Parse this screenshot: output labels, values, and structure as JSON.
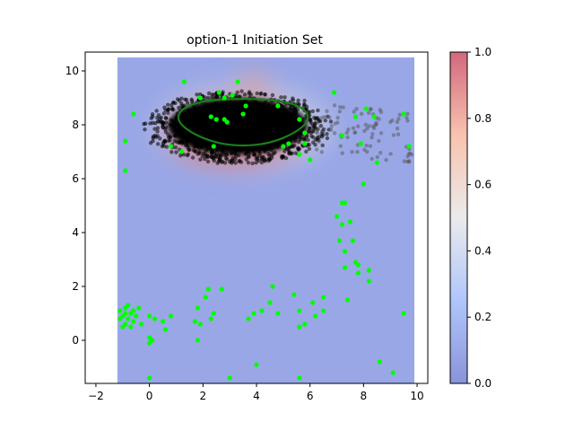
{
  "chart_data": {
    "type": "scatter",
    "title": "option-1 Initiation Set",
    "xlabel": "",
    "ylabel": "",
    "xlim": [
      -2.4,
      10.4
    ],
    "ylim": [
      -1.6,
      10.7
    ],
    "x_ticks": [
      -2,
      0,
      2,
      4,
      6,
      8,
      10
    ],
    "y_ticks": [
      0,
      2,
      4,
      6,
      8,
      10
    ],
    "background_field": {
      "x_range": [
        -1.2,
        9.9
      ],
      "y_range": [
        -1.6,
        10.5
      ],
      "base_value": 0.1,
      "high_region_center": [
        3.5,
        7.9
      ],
      "high_region_value": 0.8,
      "colormap": "coolwarm"
    },
    "colorbar": {
      "min": 0.0,
      "max": 1.0,
      "ticks": [
        "0.0",
        "0.2",
        "0.4",
        "0.6",
        "0.8",
        "1.0"
      ],
      "colormap": "coolwarm"
    },
    "black_cloud": {
      "color": "#000000",
      "center": [
        3.3,
        7.6
      ],
      "x_extent": [
        -1.2,
        7.6
      ],
      "y_extent": [
        6.2,
        9.6
      ]
    },
    "green_contour": {
      "color": "#1a7f1a",
      "center": [
        3.5,
        8.15
      ],
      "radius_x": 2.3,
      "radius_y": 0.9
    },
    "green_points": {
      "color": "#00ff00",
      "points": [
        [
          -1.1,
          1.1
        ],
        [
          -1.0,
          0.9
        ],
        [
          -0.9,
          1.2
        ],
        [
          -0.8,
          0.8
        ],
        [
          -0.7,
          1.0
        ],
        [
          -0.6,
          0.7
        ],
        [
          -0.9,
          0.6
        ],
        [
          -1.0,
          0.5
        ],
        [
          -0.8,
          1.3
        ],
        [
          -0.6,
          1.1
        ],
        [
          -0.5,
          0.9
        ],
        [
          -1.1,
          0.8
        ],
        [
          -0.7,
          0.5
        ],
        [
          -0.9,
          1.0
        ],
        [
          -0.4,
          1.2
        ],
        [
          -0.3,
          0.6
        ],
        [
          0.0,
          0.9
        ],
        [
          0.2,
          0.8
        ],
        [
          0.5,
          0.7
        ],
        [
          0.8,
          0.9
        ],
        [
          0.1,
          0.0
        ],
        [
          0.0,
          -0.1
        ],
        [
          0.0,
          0.1
        ],
        [
          0.6,
          0.4
        ],
        [
          1.7,
          0.7
        ],
        [
          1.8,
          1.2
        ],
        [
          1.9,
          0.6
        ],
        [
          2.1,
          1.6
        ],
        [
          2.2,
          1.9
        ],
        [
          2.3,
          0.8
        ],
        [
          2.4,
          1.0
        ],
        [
          2.7,
          1.9
        ],
        [
          1.8,
          0.0
        ],
        [
          3.7,
          0.8
        ],
        [
          3.9,
          1.0
        ],
        [
          4.2,
          1.1
        ],
        [
          4.5,
          1.4
        ],
        [
          4.8,
          1.0
        ],
        [
          4.6,
          2.0
        ],
        [
          5.4,
          1.7
        ],
        [
          5.6,
          1.1
        ],
        [
          5.6,
          0.5
        ],
        [
          5.8,
          0.6
        ],
        [
          6.1,
          1.4
        ],
        [
          6.5,
          1.6
        ],
        [
          6.5,
          1.1
        ],
        [
          6.2,
          0.9
        ],
        [
          7.4,
          1.5
        ],
        [
          7.0,
          4.6
        ],
        [
          7.2,
          5.1
        ],
        [
          7.3,
          5.1
        ],
        [
          7.2,
          4.3
        ],
        [
          7.5,
          4.4
        ],
        [
          7.1,
          3.7
        ],
        [
          7.3,
          3.3
        ],
        [
          7.6,
          3.7
        ],
        [
          7.7,
          2.9
        ],
        [
          7.8,
          2.8
        ],
        [
          7.3,
          2.7
        ],
        [
          7.8,
          2.5
        ],
        [
          8.2,
          2.6
        ],
        [
          8.2,
          2.2
        ],
        [
          8.0,
          5.8
        ],
        [
          8.6,
          -0.8
        ],
        [
          9.1,
          -1.2
        ],
        [
          9.5,
          1.0
        ],
        [
          0.0,
          -1.4
        ],
        [
          3.0,
          -1.4
        ],
        [
          4.0,
          -0.9
        ],
        [
          5.6,
          -1.4
        ],
        [
          6.9,
          9.2
        ],
        [
          7.7,
          8.3
        ],
        [
          8.4,
          8.3
        ],
        [
          8.1,
          8.6
        ],
        [
          9.5,
          8.4
        ],
        [
          9.7,
          7.2
        ],
        [
          8.5,
          6.6
        ],
        [
          7.2,
          7.6
        ],
        [
          7.9,
          7.3
        ],
        [
          6.0,
          6.7
        ],
        [
          5.6,
          6.9
        ],
        [
          5.8,
          7.3
        ],
        [
          5.2,
          7.3
        ],
        [
          5.0,
          7.2
        ],
        [
          -0.6,
          8.4
        ],
        [
          -0.9,
          7.4
        ],
        [
          -0.9,
          6.3
        ],
        [
          0.8,
          7.2
        ],
        [
          1.2,
          7.0
        ],
        [
          1.3,
          9.6
        ],
        [
          2.3,
          8.3
        ],
        [
          2.5,
          8.2
        ],
        [
          2.8,
          8.2
        ],
        [
          2.8,
          9.0
        ],
        [
          3.1,
          9.1
        ],
        [
          3.3,
          9.6
        ],
        [
          3.6,
          8.7
        ],
        [
          3.5,
          8.4
        ],
        [
          2.4,
          7.2
        ],
        [
          4.8,
          8.7
        ],
        [
          5.6,
          8.2
        ],
        [
          5.8,
          7.7
        ],
        [
          1.9,
          9.0
        ],
        [
          2.6,
          9.2
        ],
        [
          2.9,
          8.1
        ]
      ]
    }
  }
}
